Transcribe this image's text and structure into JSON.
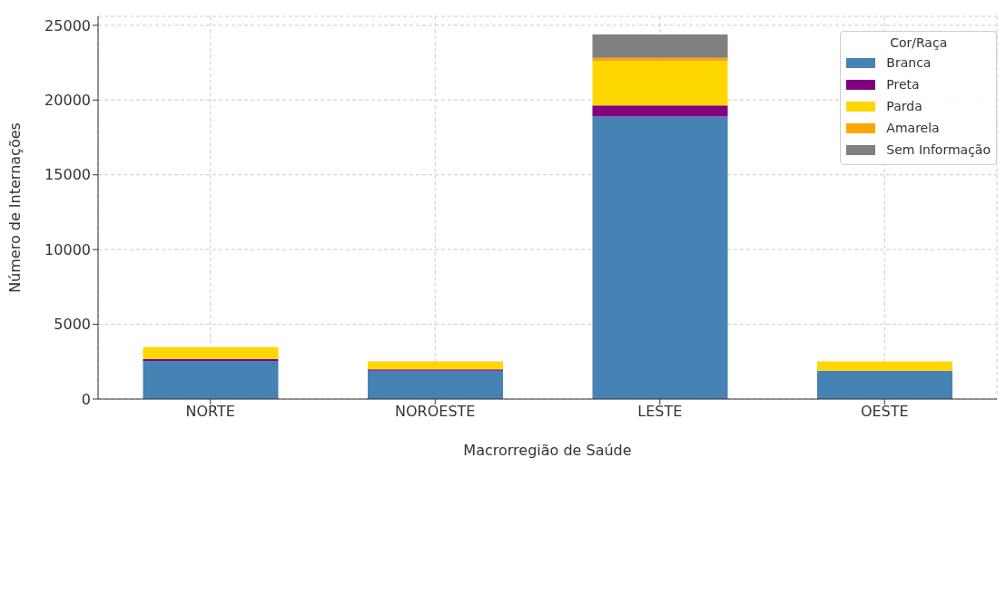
{
  "chart_data": {
    "type": "bar",
    "stacked": true,
    "xlabel": "Macrorregião de Saúde",
    "ylabel": "Número de Internações",
    "legend_title": "Cor/Raça",
    "categories": [
      "NORTE",
      "NOROESTE",
      "LESTE",
      "OESTE"
    ],
    "series": [
      {
        "name": "Branca",
        "color": "#4682b4",
        "values": [
          2550,
          1900,
          18900,
          1900
        ]
      },
      {
        "name": "Preta",
        "color": "#800080",
        "values": [
          140,
          90,
          740,
          null
        ]
      },
      {
        "name": "Parda",
        "color": "#ffd700",
        "values": [
          780,
          510,
          2960,
          620
        ]
      },
      {
        "name": "Amarela",
        "color": "#ffa500",
        "values": [
          10,
          20,
          220,
          null
        ]
      },
      {
        "name": "Sem Informação",
        "color": "#808080",
        "values": [
          0,
          0,
          1570,
          0
        ]
      }
    ],
    "ylim": [
      0,
      25600
    ],
    "yticks": [
      0,
      5000,
      10000,
      15000,
      20000,
      25000
    ],
    "grid": true,
    "legend": "top right"
  }
}
